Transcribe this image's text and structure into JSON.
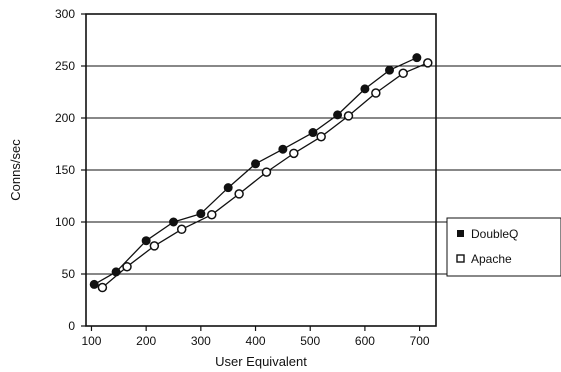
{
  "chart_data": {
    "type": "line",
    "title": "",
    "xlabel": "User Equivalent",
    "ylabel": "Conns/sec",
    "xlim": [
      90,
      730
    ],
    "ylim": [
      0,
      300
    ],
    "x_ticks": [
      100,
      200,
      300,
      400,
      500,
      600,
      700
    ],
    "y_ticks": [
      0,
      50,
      100,
      150,
      200,
      250,
      300
    ],
    "grid": "horizontal",
    "legend_position": "right",
    "series": [
      {
        "name": "DoubleQ",
        "marker": "filled-circle",
        "color": "#111111",
        "points": [
          {
            "x": 105,
            "y": 40
          },
          {
            "x": 145,
            "y": 52
          },
          {
            "x": 200,
            "y": 82
          },
          {
            "x": 250,
            "y": 100
          },
          {
            "x": 300,
            "y": 108
          },
          {
            "x": 350,
            "y": 133
          },
          {
            "x": 400,
            "y": 156
          },
          {
            "x": 450,
            "y": 170
          },
          {
            "x": 505,
            "y": 186
          },
          {
            "x": 550,
            "y": 203
          },
          {
            "x": 600,
            "y": 228
          },
          {
            "x": 645,
            "y": 246
          },
          {
            "x": 695,
            "y": 258
          }
        ]
      },
      {
        "name": "Apache",
        "marker": "open-circle",
        "color": "#111111",
        "points": [
          {
            "x": 120,
            "y": 37
          },
          {
            "x": 165,
            "y": 57
          },
          {
            "x": 215,
            "y": 77
          },
          {
            "x": 265,
            "y": 93
          },
          {
            "x": 320,
            "y": 107
          },
          {
            "x": 370,
            "y": 127
          },
          {
            "x": 420,
            "y": 148
          },
          {
            "x": 470,
            "y": 166
          },
          {
            "x": 520,
            "y": 182
          },
          {
            "x": 570,
            "y": 202
          },
          {
            "x": 620,
            "y": 224
          },
          {
            "x": 670,
            "y": 243
          },
          {
            "x": 715,
            "y": 253
          }
        ]
      }
    ]
  }
}
